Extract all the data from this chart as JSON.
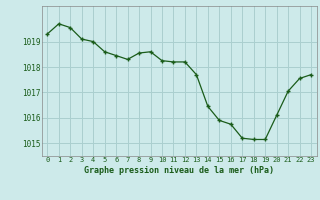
{
  "x": [
    0,
    1,
    2,
    3,
    4,
    5,
    6,
    7,
    8,
    9,
    10,
    11,
    12,
    13,
    14,
    15,
    16,
    17,
    18,
    19,
    20,
    21,
    22,
    23
  ],
  "y": [
    1019.3,
    1019.7,
    1019.55,
    1019.1,
    1019.0,
    1018.6,
    1018.45,
    1018.3,
    1018.55,
    1018.6,
    1018.25,
    1018.2,
    1018.2,
    1017.7,
    1016.45,
    1015.9,
    1015.75,
    1015.2,
    1015.15,
    1015.15,
    1016.1,
    1017.05,
    1017.55,
    1017.7
  ],
  "line_color": "#1a5c1a",
  "marker_color": "#1a5c1a",
  "bg_color": "#cdeaea",
  "grid_color": "#aacfcf",
  "xlabel": "Graphe pression niveau de la mer (hPa)",
  "xlabel_color": "#1a5c1a",
  "tick_color": "#1a5c1a",
  "ylim": [
    1014.5,
    1020.4
  ],
  "yticks": [
    1015,
    1016,
    1017,
    1018,
    1019
  ],
  "xlim": [
    -0.5,
    23.5
  ],
  "xticks": [
    0,
    1,
    2,
    3,
    4,
    5,
    6,
    7,
    8,
    9,
    10,
    11,
    12,
    13,
    14,
    15,
    16,
    17,
    18,
    19,
    20,
    21,
    22,
    23
  ]
}
